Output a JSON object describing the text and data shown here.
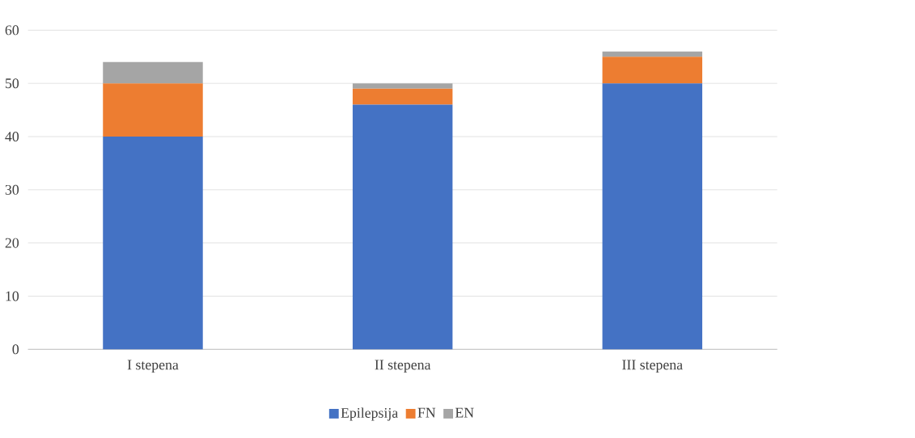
{
  "chart_data": {
    "type": "bar",
    "stacked": true,
    "categories": [
      "I stepena",
      "II stepena",
      "III stepena"
    ],
    "series": [
      {
        "name": "Epilepsija",
        "color": "#4472c4",
        "values": [
          40,
          46,
          50
        ]
      },
      {
        "name": "FN",
        "color": "#ed7d31",
        "values": [
          10,
          3,
          5
        ]
      },
      {
        "name": "EN",
        "color": "#a5a5a5",
        "values": [
          4,
          1,
          1
        ]
      }
    ],
    "ylim": [
      0,
      60
    ],
    "yticks": [
      0,
      10,
      20,
      30,
      40,
      50,
      60
    ],
    "grid": "y",
    "legend": "bottom"
  }
}
